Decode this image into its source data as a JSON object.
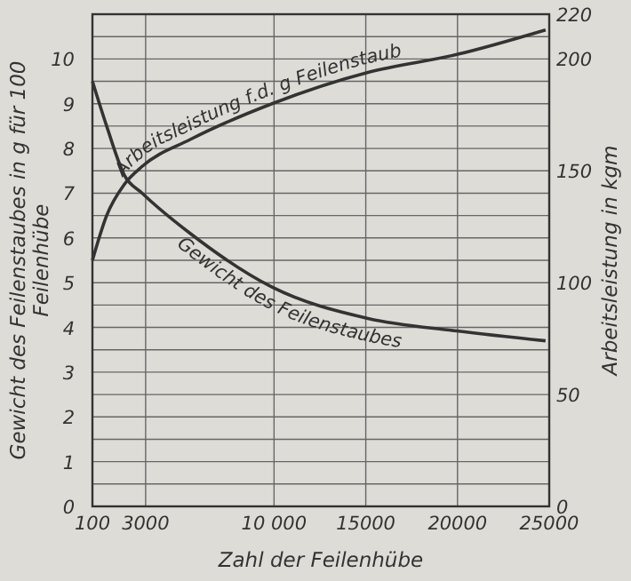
{
  "chart_data": {
    "type": "line",
    "xlabel": "Zahl der Feilenhübe",
    "ylabel": "Gewicht des Feilenstaubes in g für 100 Feilenhübe",
    "y2label": "Arbeitsleistung in kgm",
    "xlim": [
      100,
      25000
    ],
    "xticks": [
      100,
      3000,
      {
        "value": 10000,
        "label": "10 000"
      },
      15000,
      20000,
      25000
    ],
    "ylim": [
      0,
      11
    ],
    "yticks": [
      0,
      {
        "value": 0.5,
        "label": null
      },
      1,
      {
        "value": 1.5,
        "label": null
      },
      2,
      {
        "value": 2.5,
        "label": null
      },
      3,
      {
        "value": 3.5,
        "label": null
      },
      4,
      {
        "value": 4.5,
        "label": null
      },
      5,
      {
        "value": 5.5,
        "label": null
      },
      6,
      {
        "value": 6.5,
        "label": null
      },
      7,
      {
        "value": 7.5,
        "label": null
      },
      8,
      {
        "value": 8.5,
        "label": null
      },
      9,
      {
        "value": 9.5,
        "label": null
      },
      10,
      {
        "value": 10.5,
        "label": null
      }
    ],
    "y2lim": [
      0,
      220
    ],
    "y2ticks": [
      0,
      50,
      100,
      150,
      200,
      220
    ],
    "grid": true,
    "series": [
      {
        "name": "Gewicht des Feilenstaubes",
        "color": "#333333",
        "x": [
          100,
          875,
          1844,
          2813,
          5430,
          9890,
          15120,
          19960,
          24800
        ],
        "values": [
          9.5,
          8.5,
          7.4,
          7.0,
          6.1,
          4.9,
          4.2,
          3.92,
          3.7
        ]
      },
      {
        "name": "Arbeitsleistung f.d. g Feilenstaub",
        "color": "#333333",
        "axis": "y2",
        "x": [
          100,
          875,
          1844,
          2813,
          5430,
          9890,
          15120,
          19960,
          24800
        ],
        "values": [
          110,
          130,
          144,
          152,
          164,
          180,
          194,
          202,
          213
        ]
      }
    ]
  }
}
